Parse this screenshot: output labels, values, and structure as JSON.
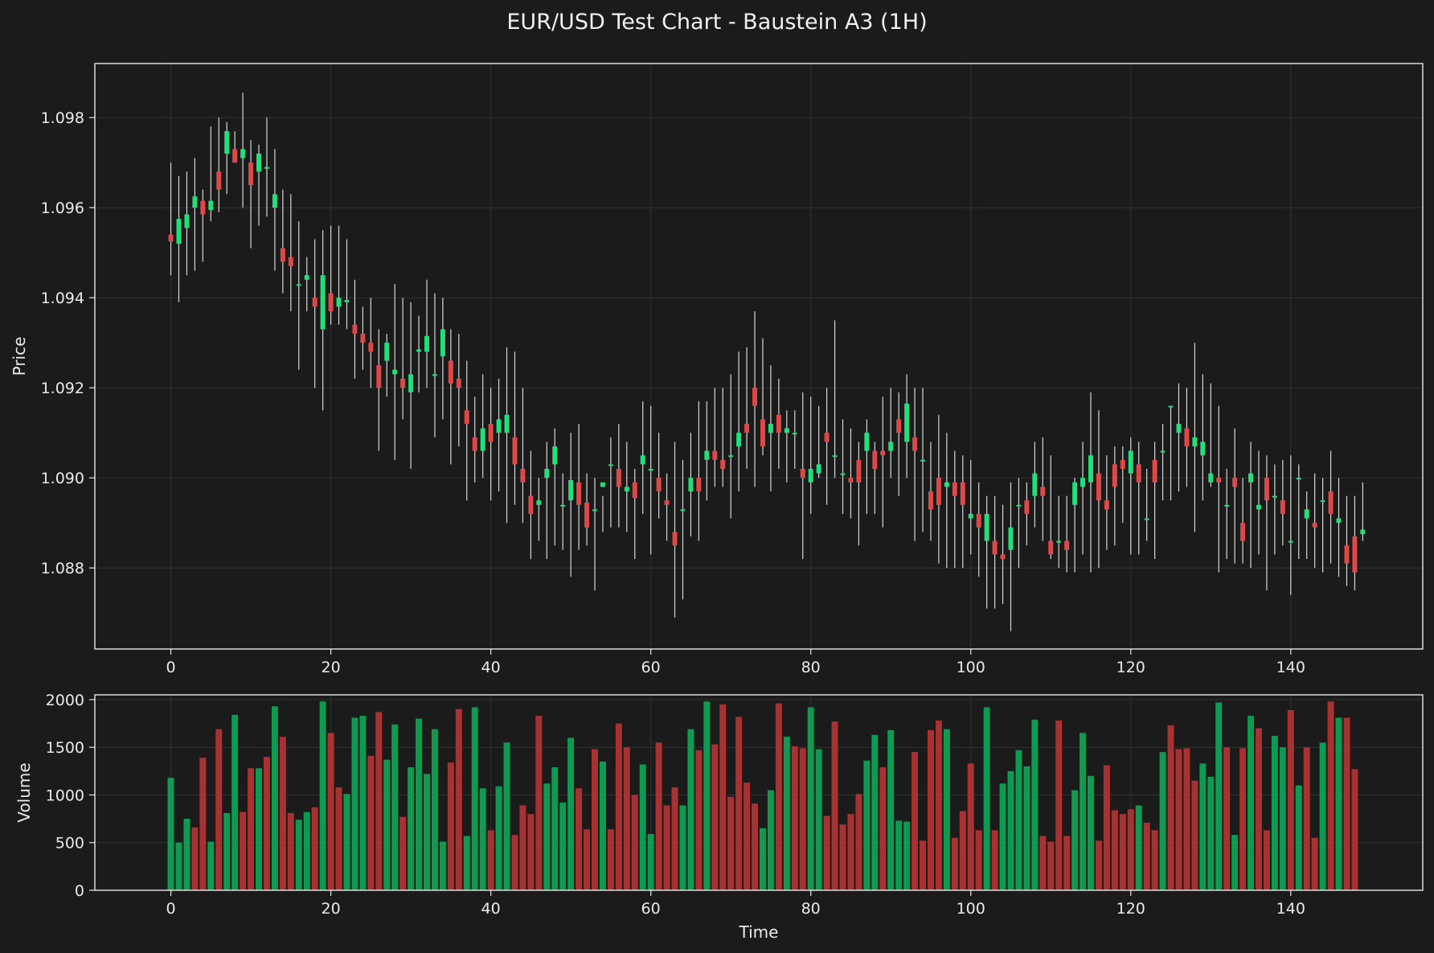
{
  "title": "EUR/USD Test Chart - Baustein A3 (1H)",
  "colors": {
    "background": "#1b1b1b",
    "up": "#1fe07a",
    "down": "#e04848",
    "volume_up": "#0f9a52",
    "volume_down": "#a83232",
    "wick": "#d8d8d8",
    "grid": "#333333",
    "axis": "#e8e8e8"
  },
  "chart_data": [
    {
      "type": "candlestick",
      "ylabel": "Price",
      "xlim": [
        -9.5,
        156.5
      ],
      "ylim": [
        1.0862,
        1.0992
      ],
      "x_ticks": [
        0,
        20,
        40,
        60,
        80,
        100,
        120,
        140
      ],
      "y_ticks": [
        1.088,
        1.09,
        1.092,
        1.094,
        1.096,
        1.098
      ],
      "grid": true,
      "series_close": [
        1.09525,
        1.09575,
        1.09585,
        1.09625,
        1.09585,
        1.09615,
        1.0964,
        1.0977,
        1.097,
        1.0973,
        1.0965,
        1.0972,
        1.0969,
        1.0963,
        1.0948,
        1.0947,
        1.0943,
        1.0945,
        1.0938,
        1.0945,
        1.0937,
        1.094,
        1.09395,
        1.0932,
        1.093,
        1.0928,
        1.092,
        1.093,
        1.0924,
        1.092,
        1.0923,
        1.09285,
        1.09315,
        1.0923,
        1.0933,
        1.0921,
        1.092,
        1.0912,
        1.0906,
        1.0911,
        1.0908,
        1.0913,
        1.0914,
        1.0903,
        1.0899,
        1.0892,
        1.0895,
        1.0902,
        1.0907,
        1.0894,
        1.08995,
        1.0894,
        1.0889,
        1.0893,
        1.0899,
        1.0903,
        1.0898,
        1.0898,
        1.08955,
        1.0905,
        1.0902,
        1.0897,
        1.0894,
        1.0885,
        1.0893,
        1.09,
        1.0897,
        1.0906,
        1.0904,
        1.0902,
        1.0905,
        1.091,
        1.091,
        1.0916,
        1.0907,
        1.0912,
        1.091,
        1.0911,
        1.091,
        1.09,
        1.0902,
        1.0903,
        1.0908,
        1.0905,
        1.0901,
        1.0899,
        1.0899,
        1.091,
        1.0902,
        1.0905,
        1.0908,
        1.091,
        1.09165,
        1.0906,
        1.0904,
        1.0893,
        1.0894,
        1.0899,
        1.0896,
        1.0894,
        1.0892,
        1.0889,
        1.0892,
        1.0883,
        1.0882,
        1.0889,
        1.0894,
        1.0892,
        1.0901,
        1.0896,
        1.0883,
        1.0886,
        1.0884,
        1.0899,
        1.09,
        1.0905,
        1.0895,
        1.0893,
        1.0898,
        1.0902,
        1.0906,
        1.0899,
        1.0891,
        1.0899,
        1.0906,
        1.0916,
        1.0912,
        1.0907,
        1.0909,
        1.0908,
        1.0901,
        1.0899,
        1.0894,
        1.0898,
        1.0886,
        1.0901,
        1.0894,
        1.0895,
        1.0896,
        1.0892,
        1.0886,
        1.09,
        1.0893,
        1.0889,
        1.0895,
        1.0892,
        1.0891,
        1.0881,
        1.0879,
        1.08885
      ],
      "series_open": [
        1.0954,
        1.0952,
        1.09555,
        1.096,
        1.09615,
        1.09595,
        1.0968,
        1.0972,
        1.0973,
        1.0971,
        1.097,
        1.0968,
        1.0969,
        1.096,
        1.0951,
        1.0949,
        1.0943,
        1.0944,
        1.094,
        1.0933,
        1.0941,
        1.0938,
        1.0939,
        1.0934,
        1.0932,
        1.093,
        1.0925,
        1.0926,
        1.0923,
        1.0922,
        1.0919,
        1.0928,
        1.0928,
        1.0923,
        1.0927,
        1.0926,
        1.0922,
        1.0915,
        1.0909,
        1.0906,
        1.0912,
        1.091,
        1.091,
        1.0909,
        1.0902,
        1.0896,
        1.0894,
        1.09,
        1.0903,
        1.0894,
        1.0895,
        1.0899,
        1.08945,
        1.0893,
        1.0898,
        1.0903,
        1.0902,
        1.0897,
        1.0899,
        1.0903,
        1.0902,
        1.09,
        1.0895,
        1.0888,
        1.0893,
        1.0897,
        1.09,
        1.0904,
        1.0906,
        1.0904,
        1.0905,
        1.0907,
        1.0912,
        1.092,
        1.0913,
        1.091,
        1.0914,
        1.091,
        1.091,
        1.0902,
        1.0899,
        1.0901,
        1.091,
        1.0905,
        1.0901,
        1.09,
        1.0904,
        1.0906,
        1.0906,
        1.0906,
        1.0906,
        1.0913,
        1.0908,
        1.0909,
        1.0904,
        1.0897,
        1.09,
        1.0898,
        1.0899,
        1.0899,
        1.0891,
        1.0892,
        1.0886,
        1.0886,
        1.0883,
        1.0884,
        1.0894,
        1.0895,
        1.0896,
        1.0898,
        1.0886,
        1.0886,
        1.0886,
        1.0894,
        1.0898,
        1.0899,
        1.0901,
        1.0895,
        1.0903,
        1.0904,
        1.0901,
        1.0903,
        1.0891,
        1.0904,
        1.0906,
        1.0916,
        1.091,
        1.0911,
        1.0907,
        1.0905,
        1.0899,
        1.09,
        1.0894,
        1.09,
        1.089,
        1.0899,
        1.0893,
        1.09,
        1.0896,
        1.0895,
        1.0886,
        1.09,
        1.0891,
        1.089,
        1.0895,
        1.0897,
        1.089,
        1.0885,
        1.0887,
        1.08875
      ],
      "series_high": [
        1.097,
        1.0967,
        1.0968,
        1.0971,
        1.0964,
        1.0978,
        1.098,
        1.0979,
        1.0977,
        1.09855,
        1.0975,
        1.0974,
        1.098,
        1.0973,
        1.0964,
        1.0963,
        1.0957,
        1.0949,
        1.0953,
        1.0955,
        1.0956,
        1.0956,
        1.0953,
        1.0944,
        1.0938,
        1.094,
        1.0933,
        1.0932,
        1.0943,
        1.094,
        1.0939,
        1.0936,
        1.0944,
        1.0941,
        1.094,
        1.0933,
        1.0932,
        1.0926,
        1.0918,
        1.0923,
        1.092,
        1.0922,
        1.0929,
        1.0928,
        1.092,
        1.0906,
        1.09,
        1.0908,
        1.0911,
        1.0901,
        1.091,
        1.0912,
        1.0901,
        1.09,
        1.0896,
        1.0909,
        1.0912,
        1.0908,
        1.0902,
        1.0917,
        1.0916,
        1.091,
        1.0901,
        1.0908,
        1.0904,
        1.091,
        1.0917,
        1.0917,
        1.092,
        1.092,
        1.0923,
        1.0928,
        1.0929,
        1.0937,
        1.0931,
        1.0925,
        1.0922,
        1.0915,
        1.0915,
        1.0919,
        1.0918,
        1.0916,
        1.092,
        1.0935,
        1.0913,
        1.0911,
        1.0908,
        1.0913,
        1.0908,
        1.0918,
        1.092,
        1.0919,
        1.0923,
        1.092,
        1.092,
        1.0908,
        1.0914,
        1.091,
        1.0906,
        1.0905,
        1.0904,
        1.0899,
        1.0896,
        1.0896,
        1.0894,
        1.0899,
        1.09,
        1.0899,
        1.0908,
        1.0909,
        1.0905,
        1.0896,
        1.0896,
        1.09,
        1.0908,
        1.0919,
        1.0915,
        1.0905,
        1.0907,
        1.0907,
        1.0909,
        1.0908,
        1.0902,
        1.0908,
        1.0912,
        1.0916,
        1.0921,
        1.092,
        1.093,
        1.0923,
        1.0921,
        1.0916,
        1.0902,
        1.0911,
        1.09,
        1.0908,
        1.0906,
        1.0905,
        1.0903,
        1.0904,
        1.0905,
        1.0903,
        1.0897,
        1.0901,
        1.09,
        1.0906,
        1.09,
        1.0896,
        1.0896,
        1.0899
      ],
      "series_low": [
        1.0945,
        1.0939,
        1.0945,
        1.0946,
        1.0948,
        1.0957,
        1.0959,
        1.0963,
        1.097,
        1.096,
        1.0951,
        1.0956,
        1.0958,
        1.0946,
        1.0941,
        1.0937,
        1.0924,
        1.0937,
        1.092,
        1.0915,
        1.0934,
        1.0934,
        1.0933,
        1.0922,
        1.0924,
        1.092,
        1.0906,
        1.0918,
        1.0904,
        1.0913,
        1.0902,
        1.0919,
        1.092,
        1.0909,
        1.0913,
        1.0903,
        1.0907,
        1.0895,
        1.0899,
        1.09,
        1.0895,
        1.0897,
        1.089,
        1.0894,
        1.089,
        1.0882,
        1.0886,
        1.0882,
        1.0885,
        1.0884,
        1.0878,
        1.0884,
        1.0885,
        1.0875,
        1.0888,
        1.0889,
        1.0889,
        1.0888,
        1.0882,
        1.0892,
        1.0883,
        1.0891,
        1.0886,
        1.0869,
        1.0873,
        1.0887,
        1.0886,
        1.0895,
        1.0898,
        1.0898,
        1.0891,
        1.0897,
        1.0902,
        1.0898,
        1.0905,
        1.0897,
        1.0902,
        1.0899,
        1.0902,
        1.0882,
        1.0892,
        1.09,
        1.0894,
        1.09,
        1.0892,
        1.0891,
        1.0885,
        1.0892,
        1.0892,
        1.0889,
        1.09,
        1.0896,
        1.09,
        1.0886,
        1.0888,
        1.0886,
        1.0881,
        1.088,
        1.088,
        1.088,
        1.0883,
        1.0878,
        1.0871,
        1.0871,
        1.0872,
        1.0866,
        1.088,
        1.0885,
        1.0889,
        1.0886,
        1.0882,
        1.088,
        1.0879,
        1.0879,
        1.0883,
        1.0879,
        1.088,
        1.0884,
        1.0885,
        1.089,
        1.0883,
        1.0883,
        1.0886,
        1.0882,
        1.0895,
        1.0895,
        1.0897,
        1.0898,
        1.0888,
        1.0895,
        1.0898,
        1.0879,
        1.0882,
        1.0881,
        1.0881,
        1.088,
        1.0883,
        1.0875,
        1.0883,
        1.0885,
        1.0874,
        1.0882,
        1.0882,
        1.088,
        1.0879,
        1.0881,
        1.0878,
        1.0876,
        1.0875,
        1.0886
      ]
    },
    {
      "type": "bar",
      "xlabel": "Time",
      "ylabel": "Volume",
      "xlim": [
        -9.5,
        156.5
      ],
      "ylim": [
        0,
        2050
      ],
      "x_ticks": [
        0,
        20,
        40,
        60,
        80,
        100,
        120,
        140
      ],
      "y_ticks": [
        0,
        500,
        1000,
        1500,
        2000
      ],
      "grid": true,
      "values": [
        1180,
        500,
        750,
        660,
        1390,
        510,
        1690,
        810,
        1840,
        820,
        1280,
        1280,
        1400,
        1930,
        1610,
        810,
        740,
        820,
        870,
        1980,
        1650,
        1080,
        1010,
        1810,
        1830,
        1410,
        1870,
        1370,
        1740,
        770,
        1290,
        1800,
        1220,
        1690,
        510,
        1340,
        1900,
        570,
        1920,
        1070,
        630,
        1090,
        1550,
        580,
        890,
        800,
        1830,
        1120,
        1290,
        920,
        1600,
        1070,
        640,
        1480,
        1350,
        640,
        1750,
        1500,
        1000,
        1320,
        590,
        1550,
        890,
        1080,
        890,
        1690,
        1470,
        1980,
        1530,
        1950,
        980,
        1820,
        1130,
        910,
        650,
        1050,
        1960,
        1610,
        1510,
        1490,
        1920,
        1480,
        780,
        1770,
        690,
        800,
        1010,
        1360,
        1630,
        1290,
        1680,
        730,
        720,
        1450,
        520,
        1680,
        1780,
        1690,
        550,
        830,
        1330,
        630,
        1920,
        630,
        1120,
        1250,
        1470,
        1300,
        1790,
        570,
        510,
        1780,
        570,
        1050,
        1650,
        1200,
        520,
        1310,
        840,
        800,
        850,
        890,
        710,
        630,
        1450,
        1730,
        1480,
        1490,
        1150,
        1330,
        1190,
        1970,
        1500,
        580,
        1490,
        1830,
        1700,
        630,
        1620,
        1500,
        1890,
        1100,
        1500,
        550,
        1550,
        1980,
        1810,
        1810,
        1270
      ],
      "directions": [
        1,
        1,
        1,
        0,
        0,
        1,
        0,
        1,
        1,
        0,
        0,
        1,
        0,
        1,
        0,
        0,
        1,
        1,
        0,
        1,
        0,
        0,
        1,
        1,
        1,
        0,
        0,
        1,
        1,
        0,
        1,
        1,
        1,
        1,
        1,
        0,
        0,
        1,
        1,
        1,
        0,
        1,
        1,
        0,
        0,
        0,
        0,
        1,
        1,
        1,
        1,
        0,
        0,
        0,
        1,
        0,
        0,
        0,
        0,
        1,
        1,
        0,
        0,
        0,
        1,
        1,
        0,
        1,
        0,
        0,
        0,
        0,
        0,
        0,
        1,
        1,
        0,
        1,
        0,
        0,
        1,
        1,
        0,
        0,
        0,
        0,
        0,
        1,
        1,
        0,
        1,
        1,
        1,
        0,
        0,
        0,
        0,
        1,
        0,
        0,
        0,
        0,
        1,
        0,
        1,
        1,
        1,
        1,
        1,
        0,
        0,
        0,
        0,
        1,
        1,
        1,
        0,
        0,
        0,
        0,
        0,
        1,
        0,
        0,
        1,
        0,
        0,
        0,
        0,
        1,
        1,
        1,
        0,
        1,
        0,
        1,
        0,
        0,
        1,
        1,
        0,
        1,
        0,
        0,
        1,
        0,
        1,
        0,
        0,
        1
      ]
    }
  ]
}
